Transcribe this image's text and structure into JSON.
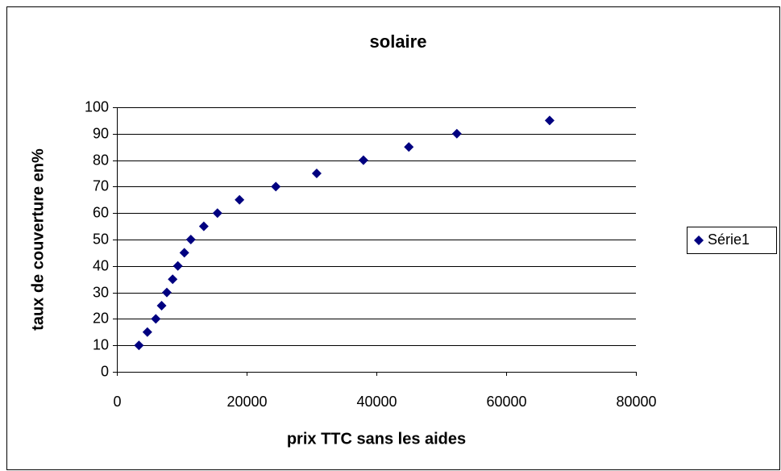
{
  "chart_data": {
    "type": "scatter",
    "title": "solaire",
    "x_label": "prix TTC sans les aides",
    "y_label": "taux de couverture en%",
    "series": [
      {
        "name": "Série1",
        "color": "#000080",
        "x": [
          3400,
          4700,
          6000,
          6900,
          7700,
          8600,
          9400,
          10400,
          11400,
          13400,
          15500,
          18900,
          24500,
          30800,
          38000,
          45000,
          52400,
          66700
        ],
        "values": [
          10,
          15,
          20,
          25,
          30,
          35,
          40,
          45,
          50,
          55,
          60,
          65,
          70,
          75,
          80,
          85,
          90,
          95
        ]
      }
    ],
    "xlim": [
      0,
      80000
    ],
    "xticks": [
      0,
      20000,
      40000,
      60000,
      80000
    ],
    "ylim": [
      0,
      100
    ],
    "yticks": [
      0,
      10,
      20,
      30,
      40,
      50,
      60,
      70,
      80,
      90,
      100
    ],
    "grid": true,
    "legend": "right"
  }
}
